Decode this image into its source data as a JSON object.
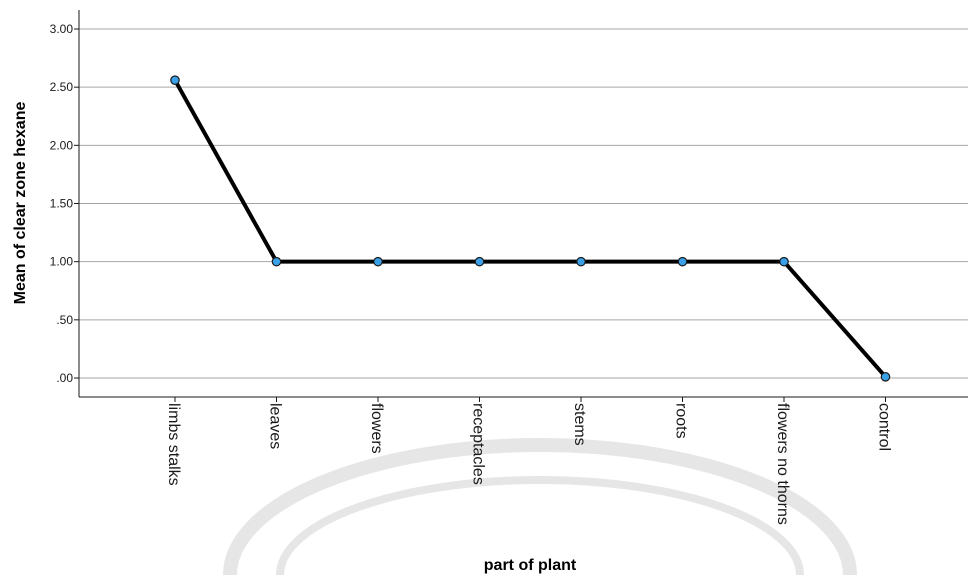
{
  "chart_data": {
    "type": "line",
    "categories": [
      "limbs stalks",
      "leaves",
      "flowers",
      "receptacles",
      "stems",
      "roots",
      "flowers no thorns",
      "control"
    ],
    "series": [
      {
        "values": [
          2.56,
          1.0,
          1.0,
          1.0,
          1.0,
          1.0,
          1.0,
          0.01
        ]
      }
    ],
    "xlabel": "part of plant",
    "ylabel": "Mean of clear zone hexane",
    "ylim": [
      0,
      3.0
    ],
    "yticks": [
      0,
      0.5,
      1.0,
      1.5,
      2.0,
      2.5,
      3.0
    ],
    "ytick_labels": [
      ".00",
      ".50",
      "1.00",
      "1.50",
      "2.00",
      "2.50",
      "3.00"
    ],
    "grid": true,
    "colors": {
      "line": "#000000",
      "marker_fill": "#3aa0e8",
      "marker_stroke": "#1a1a1a",
      "grid": "#a6a6a6"
    }
  }
}
